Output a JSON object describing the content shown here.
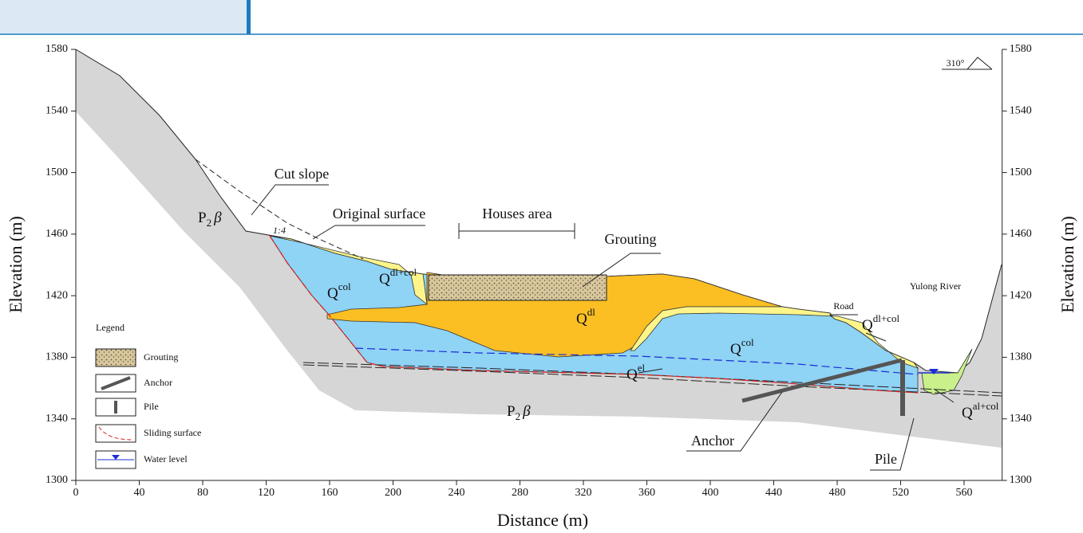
{
  "axes": {
    "x": {
      "label": "Distance (m)",
      "lim": [
        0,
        584
      ],
      "ticks": [
        0,
        40,
        80,
        120,
        160,
        200,
        240,
        280,
        320,
        360,
        400,
        440,
        480,
        520,
        560
      ]
    },
    "y": {
      "label": "Elevation (m)",
      "lim": [
        1300,
        1580
      ],
      "ticks": [
        1300,
        1340,
        1380,
        1420,
        1460,
        1500,
        1540,
        1580
      ]
    }
  },
  "annotations": {
    "cut_slope": "Cut slope",
    "original_surface": "Original surface",
    "houses_area": "Houses area",
    "grouting": "Grouting",
    "slope_ratio": "1:4",
    "road": "Road",
    "river": "Yulong River",
    "anchor": "Anchor",
    "pile": "Pile",
    "orientation": "310°"
  },
  "strata": [
    {
      "base": "P",
      "sub": "2",
      "greek": "β"
    },
    {
      "base": "P",
      "sub": "2",
      "greek": "β"
    },
    {
      "base": "Q",
      "sup": "col"
    },
    {
      "base": "Q",
      "sup": "dl+col"
    },
    {
      "base": "Q",
      "sup": "dl"
    },
    {
      "base": "Q",
      "sup": "col"
    },
    {
      "base": "Q",
      "sup": "dl+col"
    },
    {
      "base": "Q",
      "sup": "el"
    },
    {
      "base": "Q",
      "sup": "al+col"
    }
  ],
  "legend": {
    "title": "Legend",
    "items": [
      "Grouting",
      "Anchor",
      "Pile",
      "Sliding surface",
      "Water level"
    ]
  }
}
